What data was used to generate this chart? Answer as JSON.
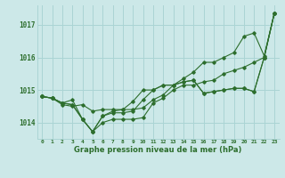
{
  "bg_color": "#cce8e8",
  "grid_color": "#aad4d4",
  "line_color": "#2d6e2d",
  "title": "Graphe pression niveau de la mer (hPa)",
  "xlabel_ticks": [
    "0",
    "1",
    "2",
    "3",
    "4",
    "5",
    "6",
    "7",
    "8",
    "9",
    "10",
    "11",
    "12",
    "13",
    "14",
    "15",
    "16",
    "17",
    "18",
    "19",
    "20",
    "21",
    "22",
    "23"
  ],
  "ylim": [
    1013.5,
    1017.6
  ],
  "yticks": [
    1014,
    1015,
    1016,
    1017
  ],
  "series1": [
    1014.8,
    1014.75,
    1014.6,
    1014.55,
    1014.1,
    1013.72,
    1014.0,
    1014.1,
    1014.1,
    1014.1,
    1014.15,
    1014.6,
    1014.75,
    1015.0,
    1015.15,
    1015.15,
    1015.25,
    1015.3,
    1015.5,
    1015.6,
    1015.7,
    1015.85,
    1016.0,
    1017.35
  ],
  "series2": [
    1014.8,
    1014.75,
    1014.6,
    1014.55,
    1014.1,
    1013.72,
    1014.2,
    1014.3,
    1014.3,
    1014.35,
    1014.7,
    1015.0,
    1015.15,
    1015.15,
    1015.25,
    1015.3,
    1014.9,
    1014.95,
    1015.0,
    1015.05,
    1015.05,
    1014.95,
    1016.0,
    1017.35
  ],
  "series3": [
    1014.8,
    1014.75,
    1014.6,
    1014.7,
    1014.1,
    1013.72,
    1014.2,
    1014.35,
    1014.4,
    1014.65,
    1015.0,
    1015.0,
    1015.15,
    1015.15,
    1015.25,
    1015.3,
    1014.9,
    1014.95,
    1015.0,
    1015.05,
    1015.05,
    1014.95,
    1016.0,
    1017.35
  ],
  "series4": [
    1014.8,
    1014.75,
    1014.55,
    1014.5,
    1014.55,
    1014.35,
    1014.4,
    1014.4,
    1014.4,
    1014.4,
    1014.45,
    1014.7,
    1014.85,
    1015.15,
    1015.35,
    1015.55,
    1015.85,
    1015.85,
    1016.0,
    1016.15,
    1016.65,
    1016.75,
    1016.05,
    1017.35
  ]
}
